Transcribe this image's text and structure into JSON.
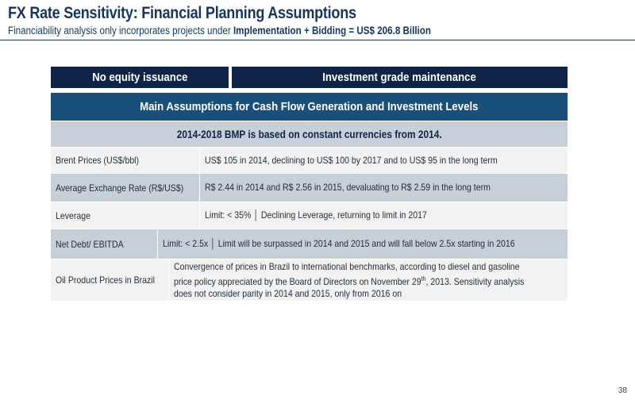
{
  "header": {
    "title": "FX Rate Sensitivity: Financial Planning Assumptions",
    "subtitle_prefix": "Financiability analysis only incorporates projects under ",
    "subtitle_bold": "Implementation + Bidding = US$ 206.8 Billion"
  },
  "top_bars": {
    "left": "No equity issuance",
    "right": "Investment grade maintenance"
  },
  "table": {
    "header": "Main Assumptions for Cash Flow Generation and Investment Levels",
    "subheader": "2014-2018 BMP is based on constant currencies from 2014.",
    "rows": [
      {
        "label": "Brent Prices (US$/bbl)",
        "value": "US$ 105 in 2014, declining to US$ 100 by 2017 and to US$ 95 in the long term"
      },
      {
        "label": "Average Exchange Rate (R$/US$)",
        "value": "R$ 2.44 in 2014 and R$ 2.56 in 2015, devaluating to R$ 2.59 in the long term"
      },
      {
        "label": "Leverage",
        "value": "Limit:  < 35%  │  Declining Leverage, returning to limit in 2017"
      },
      {
        "label": "Net Debt/ EBITDA",
        "value": "Limit:  < 2.5x  │  Limit will be surpassed in 2014 and 2015 and will fall below 2.5x starting in 2016"
      },
      {
        "label": "Oil Product Prices in Brazil",
        "value_part1": "Convergence of prices in Brazil to international benchmarks, according to diesel and gasoline price policy appreciated by the Board of Directors on November 29",
        "value_sup": "th",
        "value_part2": ", 2013. Sensitivity analysis does not consider parity in 2014 and 2015, only from 2016 on"
      }
    ]
  },
  "footer": {
    "page_number": "38"
  }
}
